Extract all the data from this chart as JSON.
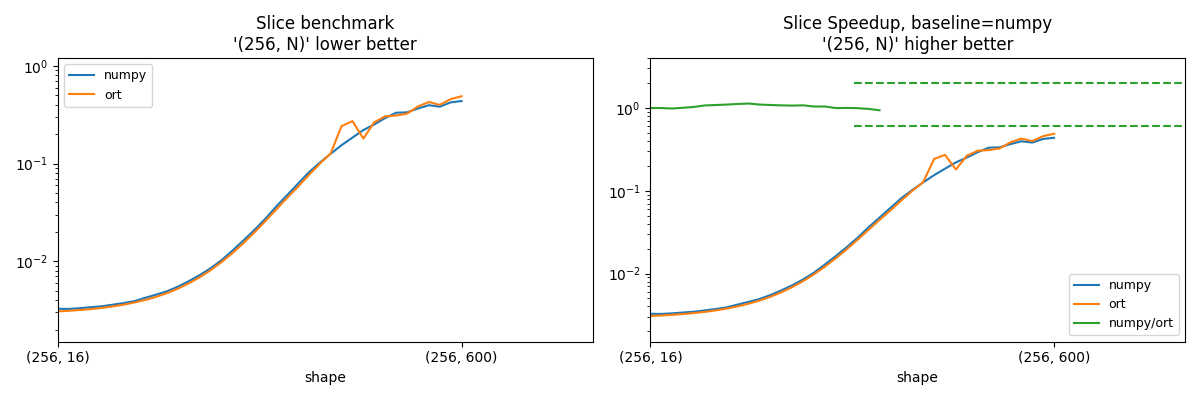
{
  "title1": "Slice benchmark\n'(256, N)' lower better",
  "title2": "Slice Speedup, baseline=numpy\n'(256, N)' higher better",
  "xlabel": "shape",
  "xtick_labels": [
    "(256, 16)",
    "(256, 600)"
  ],
  "numpy_color": "#1f77b4",
  "ort_color": "#ff7f0e",
  "green_color": "#2ca02c",
  "legend1_labels": [
    "numpy",
    "ort"
  ],
  "legend2_labels": [
    "numpy",
    "ort",
    "numpy/ort"
  ],
  "dashed_line_upper": 2.0,
  "dashed_line_lower": 0.6,
  "n_total": 50,
  "n_data": 38,
  "xtick_pos_second": 37
}
